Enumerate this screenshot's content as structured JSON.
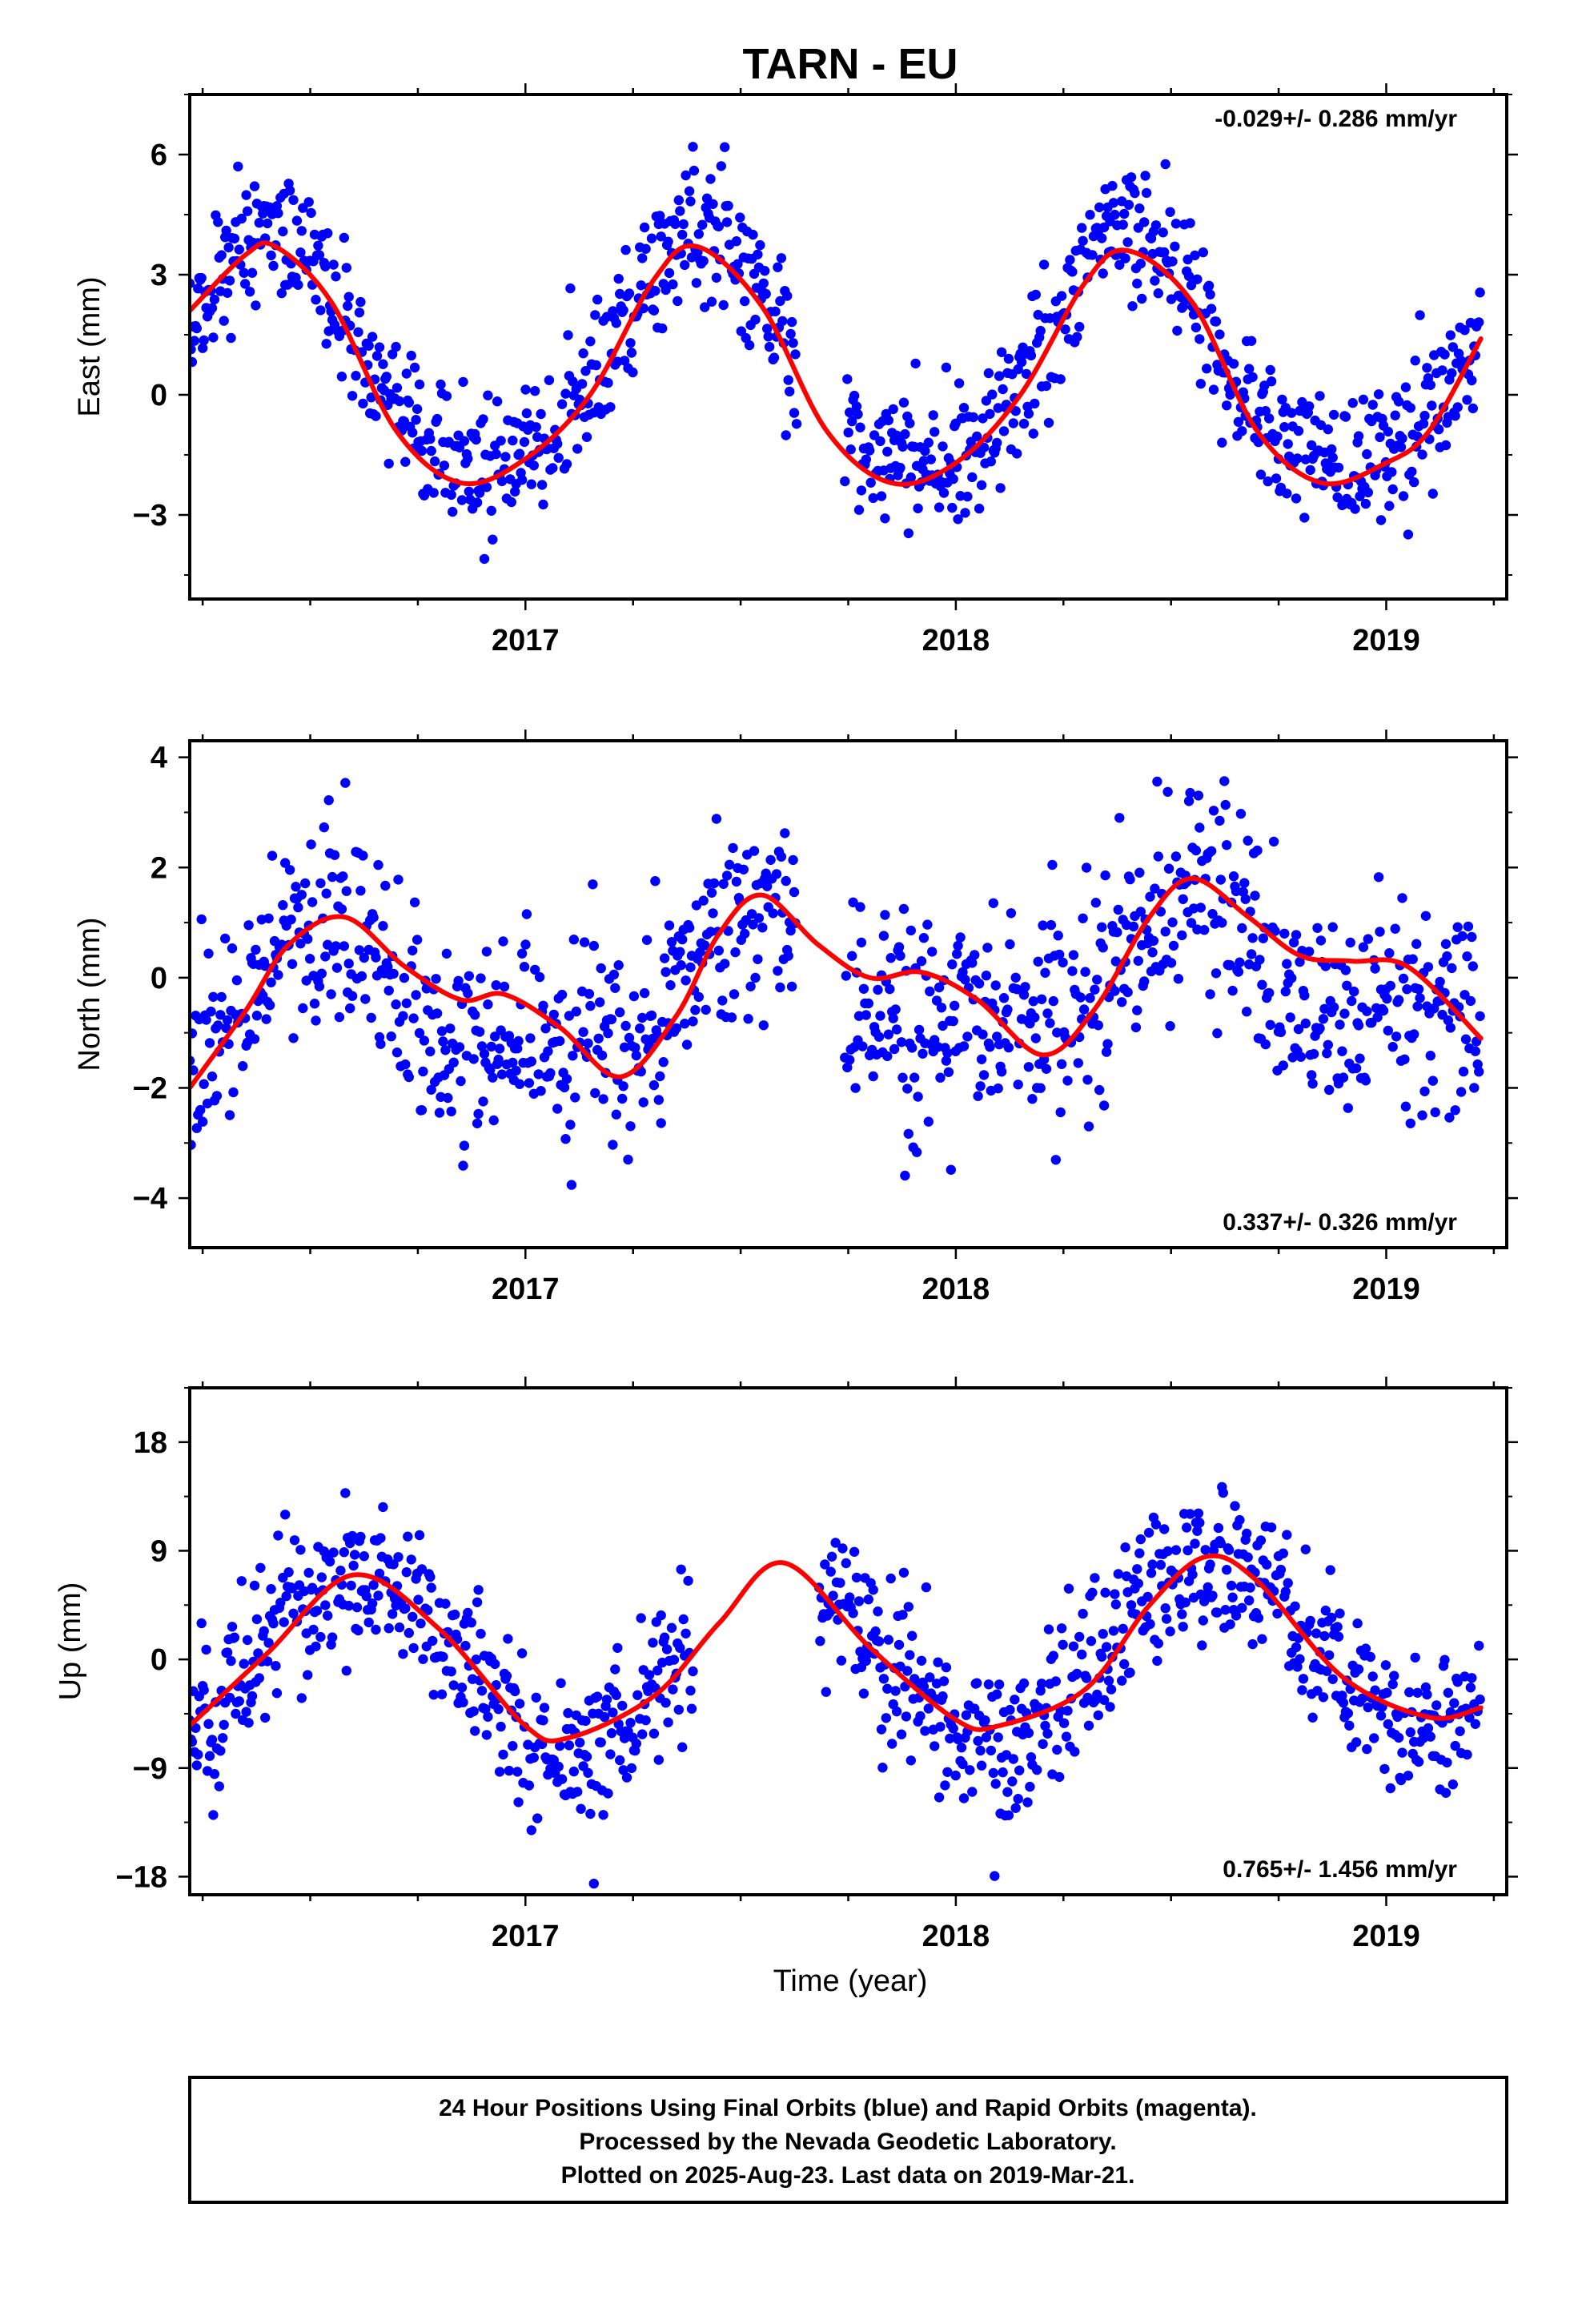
{
  "title": "TARN - EU",
  "colors": {
    "points": "#0000ff",
    "fit": "#ff0000",
    "frame": "#000000"
  },
  "time_axis_label": "Time (year)",
  "footer": {
    "line1": "24 Hour Positions Using Final Orbits (blue) and Rapid Orbits (magenta).",
    "line2": "Processed by the Nevada Geodetic Laboratory.",
    "line3": "Plotted on 2025-Aug-23. Last data on 2019-Mar-21."
  },
  "chart_data": [
    {
      "type": "scatter",
      "panel": "east",
      "ylabel": "East (mm)",
      "rate_text": "-0.029+/- 0.286 mm/yr",
      "rate_position": "top-right",
      "xlim": [
        2016.22,
        2019.28
      ],
      "ylim": [
        -5.1,
        7.5
      ],
      "xticks": [
        2017,
        2018,
        2019
      ],
      "yticks": [
        6,
        3,
        0,
        -3
      ],
      "ytick_labels": [
        "6",
        "3",
        "0",
        "−3"
      ],
      "series": [
        {
          "kind": "daily-positions",
          "x_start": 2016.22,
          "x_end": 2019.22,
          "x_gaps": [
            [
              2017.63,
              2017.74
            ]
          ],
          "mean_model": {
            "offset": 0.8,
            "annual_amp": 2.9,
            "annual_peak": 2.4,
            "semi_amp": 0.5,
            "semi_peak": 2.4,
            "trend": 0.0
          },
          "scatter_sd": 0.85,
          "marker_color": "#0000ff"
        },
        {
          "kind": "fit",
          "x": [
            2016.22,
            2016.35,
            2016.42,
            2016.55,
            2016.7,
            2016.85,
            2017.0,
            2017.15,
            2017.3,
            2017.4,
            2017.55,
            2017.7,
            2017.85,
            2018.0,
            2018.15,
            2018.3,
            2018.4,
            2018.55,
            2018.7,
            2018.85,
            2019.0,
            2019.1,
            2019.22
          ],
          "y": [
            2.1,
            3.5,
            3.7,
            2.3,
            -0.9,
            -2.2,
            -1.6,
            0.0,
            2.9,
            3.7,
            2.2,
            -0.9,
            -2.2,
            -1.7,
            0.0,
            2.8,
            3.6,
            2.3,
            -0.9,
            -2.2,
            -1.7,
            -0.9,
            1.4
          ],
          "line_color": "#ff0000"
        }
      ]
    },
    {
      "type": "scatter",
      "panel": "north",
      "ylabel": "North (mm)",
      "rate_text": "0.337+/- 0.326 mm/yr",
      "rate_position": "bottom-right",
      "xlim": [
        2016.22,
        2019.28
      ],
      "ylim": [
        -4.9,
        4.3
      ],
      "xticks": [
        2017,
        2018,
        2019
      ],
      "yticks": [
        4,
        2,
        0,
        -2,
        -4
      ],
      "ytick_labels": [
        "4",
        "2",
        "0",
        "−2",
        "−4"
      ],
      "series": [
        {
          "kind": "daily-positions",
          "x_start": 2016.22,
          "x_end": 2019.22,
          "x_gaps": [
            [
              2017.63,
              2017.74
            ]
          ],
          "mean_model": {
            "offset": -0.2,
            "annual_amp": 1.1,
            "annual_peak": 2.55,
            "semi_amp": 0.5,
            "semi_peak": 2.55,
            "trend": 0.337
          },
          "scatter_sd": 0.95,
          "marker_color": "#0000ff"
        },
        {
          "kind": "fit",
          "x": [
            2016.22,
            2016.35,
            2016.45,
            2016.58,
            2016.72,
            2016.85,
            2016.95,
            2017.08,
            2017.22,
            2017.35,
            2017.45,
            2017.55,
            2017.68,
            2017.8,
            2017.92,
            2018.05,
            2018.2,
            2018.32,
            2018.45,
            2018.55,
            2018.68,
            2018.8,
            2018.92,
            2019.05,
            2019.22
          ],
          "y": [
            -2.0,
            -0.6,
            0.6,
            1.1,
            0.2,
            -0.4,
            -0.3,
            -0.9,
            -1.8,
            -0.7,
            0.8,
            1.5,
            0.6,
            0.0,
            0.1,
            -0.4,
            -1.4,
            -0.6,
            1.1,
            1.8,
            1.1,
            0.4,
            0.3,
            0.2,
            -1.1
          ],
          "line_color": "#ff0000"
        }
      ]
    },
    {
      "type": "scatter",
      "panel": "up",
      "ylabel": "Up (mm)",
      "rate_text": "0.765+/- 1.456 mm/yr",
      "rate_position": "bottom-right",
      "xlim": [
        2016.22,
        2019.28
      ],
      "ylim": [
        -19.5,
        22.5
      ],
      "xticks": [
        2017,
        2018,
        2019
      ],
      "yticks": [
        18,
        9,
        0,
        -9,
        -18
      ],
      "ytick_labels": [
        "18",
        "9",
        "0",
        "−9",
        "−18"
      ],
      "series": [
        {
          "kind": "daily-positions",
          "x_start": 2016.22,
          "x_end": 2019.22,
          "x_gaps": [
            [
              2017.39,
              2017.68
            ]
          ],
          "mean_model": {
            "offset": 0.0,
            "annual_amp": 7.3,
            "annual_peak": 2.6,
            "semi_amp": 0.0,
            "semi_peak": 0.0,
            "trend": 0.765
          },
          "scatter_sd": 3.2,
          "marker_color": "#0000ff"
        },
        {
          "kind": "fit",
          "x": [
            2016.22,
            2016.4,
            2016.6,
            2016.8,
            2017.0,
            2017.1,
            2017.3,
            2017.45,
            2017.6,
            2017.8,
            2018.0,
            2018.1,
            2018.3,
            2018.45,
            2018.58,
            2018.7,
            2018.9,
            2019.1,
            2019.22
          ],
          "y": [
            -5.5,
            0.5,
            7.0,
            2.5,
            -5.5,
            -6.5,
            -3.0,
            3.0,
            8.0,
            1.0,
            -5.0,
            -5.5,
            -2.5,
            4.5,
            8.5,
            6.5,
            -1.5,
            -4.8,
            -4.0
          ],
          "line_color": "#ff0000"
        }
      ]
    }
  ]
}
